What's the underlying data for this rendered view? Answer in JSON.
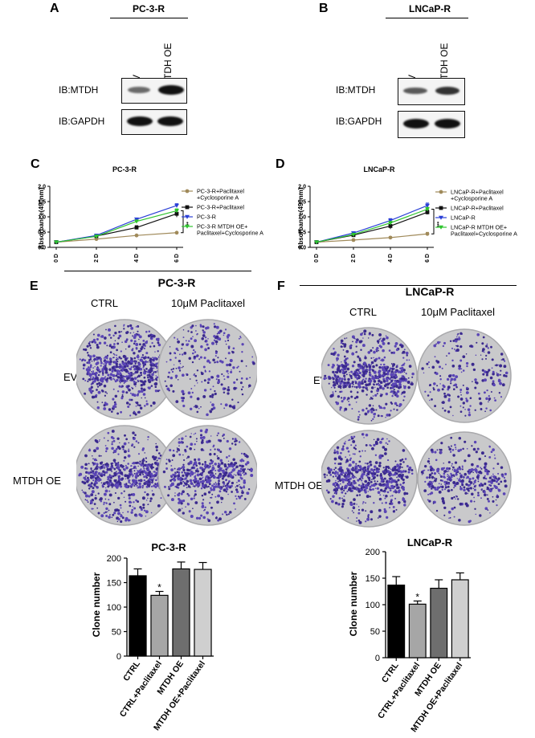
{
  "panels": {
    "A": {
      "letter": "A",
      "title": "PC-3-R",
      "lanes": [
        "EV",
        "MTDH OE"
      ],
      "rows": [
        "IB:MTDH",
        "IB:GAPDH"
      ]
    },
    "B": {
      "letter": "B",
      "title": "LNCaP-R",
      "lanes": [
        "EV",
        "MTDH OE"
      ],
      "rows": [
        "IB:MTDH",
        "IB:GAPDH"
      ]
    },
    "C": {
      "letter": "C",
      "title": "PC-3-R"
    },
    "D": {
      "letter": "D",
      "title": "LNCaP-R"
    },
    "E": {
      "letter": "E",
      "title": "PC-3-R",
      "cols": [
        "CTRL",
        "10μM Paclitaxel"
      ],
      "rows": [
        "EV",
        "MTDH OE"
      ]
    },
    "F": {
      "letter": "F",
      "title": "LNCaP-R",
      "cols": [
        "CTRL",
        "10μM Paclitaxel"
      ],
      "rows": [
        "EV",
        "MTDH OE"
      ]
    }
  },
  "chart_data": [
    {
      "type": "line",
      "title": "PC-3-R",
      "ylabel": "Absorbance(490nm)",
      "xlabel": "",
      "categories": [
        "0 D",
        "2 D",
        "4 D",
        "6 D"
      ],
      "ylim": [
        0,
        2.0
      ],
      "yticks": [
        "0.0",
        "0.5",
        "1.0",
        "1.5",
        "2.0"
      ],
      "yticks_values": [
        0,
        0.5,
        1.0,
        1.5,
        2.0
      ],
      "significance": "***",
      "legend_position": "right",
      "series": [
        {
          "name": "PC-3-R+Paclitaxel +Cyclosporine A",
          "legend_lines": [
            "PC-3-R+Paclitaxel",
            "+Cyclosporine A"
          ],
          "color": "#a08a5a",
          "marker": "circle",
          "values": [
            0.17,
            0.27,
            0.39,
            0.48
          ],
          "errors": [
            0.01,
            0.02,
            0.02,
            0.02
          ]
        },
        {
          "name": "PC-3-R+Paclitaxel",
          "legend_lines": [
            "PC-3-R+Paclitaxel"
          ],
          "color": "#111111",
          "marker": "square",
          "values": [
            0.17,
            0.37,
            0.65,
            1.1
          ],
          "errors": [
            0.01,
            0.03,
            0.06,
            0.11
          ]
        },
        {
          "name": "PC-3-R",
          "legend_lines": [
            "PC-3-R"
          ],
          "color": "#2a3fd6",
          "marker": "triangle-down",
          "values": [
            0.17,
            0.39,
            0.92,
            1.37
          ],
          "errors": [
            0.01,
            0.03,
            0.04,
            0.06
          ]
        },
        {
          "name": "PC-3-R MTDH OE+ Paclitaxel+Cyclosporine A",
          "legend_lines": [
            "PC-3-R MTDH OE+",
            "Paclitaxel+Cyclosporine A"
          ],
          "color": "#2ec42e",
          "marker": "triangle-down",
          "values": [
            0.17,
            0.36,
            0.85,
            1.2
          ],
          "errors": [
            0.01,
            0.03,
            0.04,
            0.06
          ]
        }
      ]
    },
    {
      "type": "line",
      "title": "LNCaP-R",
      "ylabel": "Absorbance(490nm)",
      "xlabel": "",
      "categories": [
        "0 D",
        "2 D",
        "4 D",
        "6 D"
      ],
      "ylim": [
        0,
        2.0
      ],
      "yticks": [
        "0.0",
        "0.5",
        "1.0",
        "1.5",
        "2.0"
      ],
      "yticks_values": [
        0,
        0.5,
        1.0,
        1.5,
        2.0
      ],
      "significance": "***",
      "legend_position": "right",
      "series": [
        {
          "name": "LNCaP-R+Paclitaxel +Cyclosporine A",
          "legend_lines": [
            "LNCaP-R+Paclitaxel",
            "+Cyclosporine A"
          ],
          "color": "#a08a5a",
          "marker": "circle",
          "values": [
            0.17,
            0.24,
            0.32,
            0.44
          ],
          "errors": [
            0.01,
            0.02,
            0.03,
            0.05
          ]
        },
        {
          "name": "LNCaP-R+Paclitaxel",
          "legend_lines": [
            "LNCaP-R+Paclitaxel"
          ],
          "color": "#111111",
          "marker": "square",
          "values": [
            0.17,
            0.4,
            0.7,
            1.15
          ],
          "errors": [
            0.01,
            0.03,
            0.1,
            0.07
          ]
        },
        {
          "name": "LNCaP-R",
          "legend_lines": [
            "LNCaP-R"
          ],
          "color": "#2a3fd6",
          "marker": "triangle-down",
          "values": [
            0.17,
            0.47,
            0.88,
            1.37
          ],
          "errors": [
            0.01,
            0.03,
            0.06,
            0.08
          ]
        },
        {
          "name": "LNCaP-R MTDH OE+ Paclitaxel+Cyclosporine A",
          "legend_lines": [
            "LNCaP-R MTDH OE+",
            "Paclitaxel+Cyclosporine A"
          ],
          "color": "#2ec42e",
          "marker": "triangle-down",
          "values": [
            0.17,
            0.42,
            0.8,
            1.25
          ],
          "errors": [
            0.01,
            0.03,
            0.05,
            0.06
          ]
        }
      ]
    },
    {
      "type": "bar",
      "title": "PC-3-R",
      "ylabel": "Clone number",
      "xlabel": "",
      "categories": [
        "CTRL",
        "CTRL+Paclitaxel",
        "MTDH OE",
        "MTDH OE+Paclitaxel"
      ],
      "values": [
        164,
        124,
        178,
        177
      ],
      "errors": [
        14,
        8,
        14,
        14
      ],
      "colors": [
        "#000000",
        "#a6a6a6",
        "#6e6e6e",
        "#cfcfcf"
      ],
      "significance": [
        "",
        "*",
        "",
        ""
      ],
      "ylim": [
        0,
        200
      ],
      "yticks": [
        "0",
        "50",
        "100",
        "150",
        "200"
      ],
      "yticks_values": [
        0,
        50,
        100,
        150,
        200
      ]
    },
    {
      "type": "bar",
      "title": "LNCaP-R",
      "ylabel": "Clone number",
      "xlabel": "",
      "categories": [
        "CTRL",
        "CTRL+Paclitaxel",
        "MTDH OE",
        "MTDH OE+Paclitaxel"
      ],
      "values": [
        137,
        101,
        131,
        147
      ],
      "errors": [
        16,
        6,
        16,
        13
      ],
      "colors": [
        "#000000",
        "#a6a6a6",
        "#6e6e6e",
        "#cfcfcf"
      ],
      "significance": [
        "",
        "*",
        "",
        ""
      ],
      "ylim": [
        0,
        200
      ],
      "yticks": [
        "0",
        "50",
        "100",
        "150",
        "200"
      ],
      "yticks_values": [
        0,
        50,
        100,
        150,
        200
      ]
    }
  ]
}
